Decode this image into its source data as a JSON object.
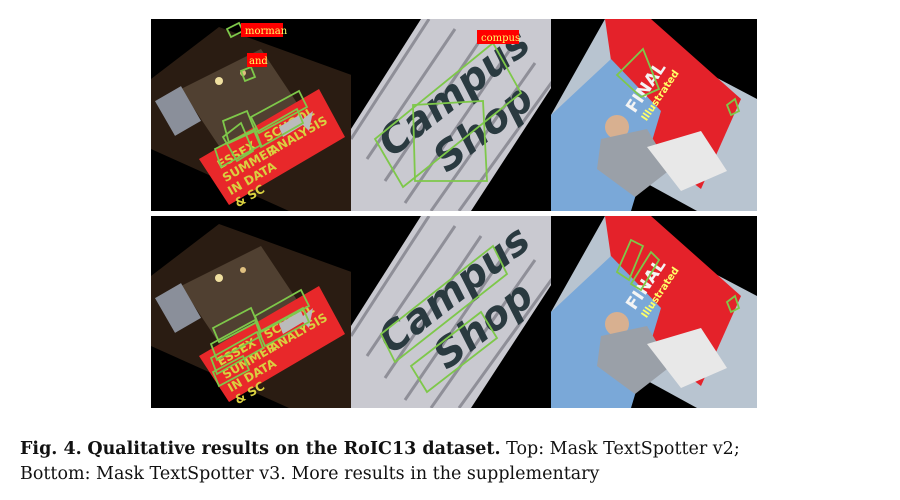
{
  "figure": {
    "top_row": {
      "essex": {
        "sign_lines": [
          "ESSEX",
          "SUMMER",
          "IN DATA",
          "& SC",
          "SCHOOL",
          "ANALYSIS"
        ],
        "result_labels": [
          "morman",
          "and"
        ]
      },
      "campus": {
        "sign_lines": [
          "Campus",
          "Shop"
        ],
        "result_labels": [
          "compus"
        ]
      },
      "final": {
        "sign_lines": [
          "FINAL",
          "Illustrated"
        ],
        "result_labels": []
      }
    },
    "bottom_row": {
      "essex": {
        "sign_lines": [
          "ESSEX",
          "SUMMER",
          "IN DATA",
          "& SC",
          "SCHOOL",
          "ANALYSIS"
        ]
      },
      "campus": {
        "sign_lines": [
          "Campus",
          "Shop"
        ]
      },
      "final": {
        "sign_lines": [
          "FINAL",
          "Illustrated"
        ]
      }
    },
    "colors": {
      "box": "#7ec84a",
      "label_bg": "#ff0000",
      "label_text": "#ffff66",
      "sign_red": "#e8282a"
    }
  },
  "caption": {
    "label": "Fig. 4.",
    "title": "Qualitative results on the RoIC13 dataset.",
    "line1_rest": "Top: Mask TextSpotter v2;",
    "line2": "Bottom: Mask TextSpotter v3. More results in the supplementary"
  }
}
